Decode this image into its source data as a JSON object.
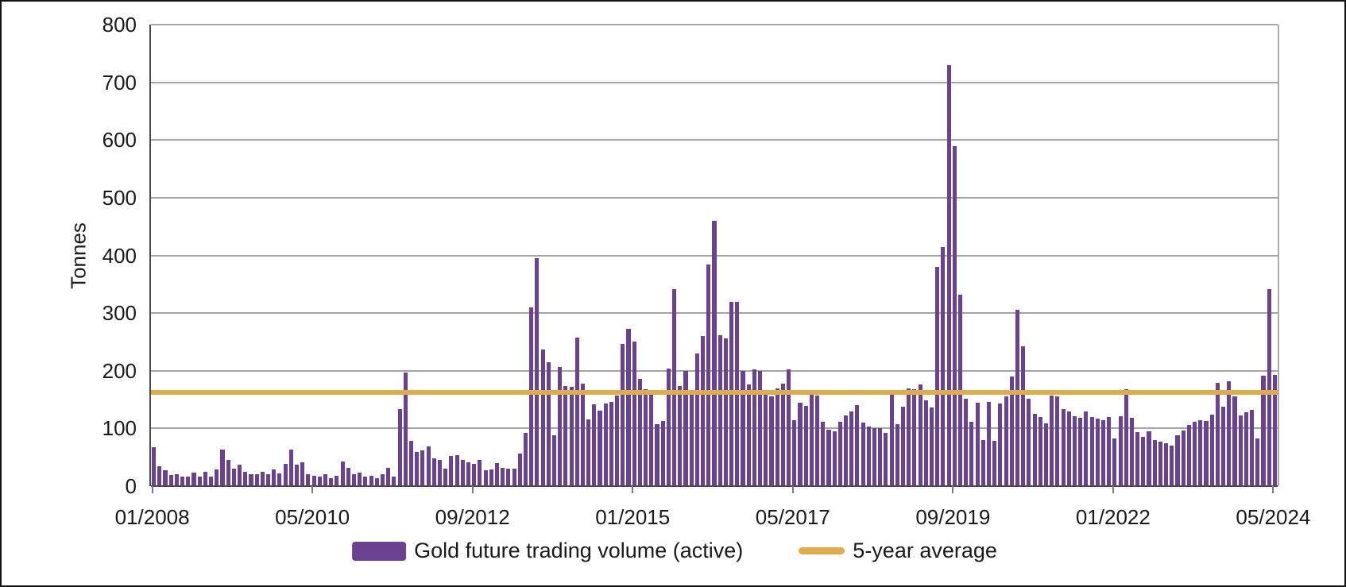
{
  "figure": {
    "background": "#ffffff",
    "border_color": "#141414",
    "gridline_color": "#a5a5a5",
    "axis_color": "#4a4a4a",
    "text_color": "#1a1a1a"
  },
  "chart_data": {
    "type": "bar",
    "title": "",
    "ylabel": "Tonnes",
    "xlabel": "",
    "ylim": [
      0,
      800
    ],
    "yticks": [
      0,
      100,
      200,
      300,
      400,
      500,
      600,
      700,
      800
    ],
    "grid": "horizontal",
    "legend_position": "bottom",
    "x_interval": "monthly",
    "x_start": "01/2008",
    "x_end": "05/2024",
    "xticks": [
      {
        "label": "01/2008",
        "month_index": 0
      },
      {
        "label": "05/2010",
        "month_index": 28
      },
      {
        "label": "09/2012",
        "month_index": 56
      },
      {
        "label": "01/2015",
        "month_index": 84
      },
      {
        "label": "05/2017",
        "month_index": 112
      },
      {
        "label": "09/2019",
        "month_index": 140
      },
      {
        "label": "01/2022",
        "month_index": 168
      },
      {
        "label": "05/2024",
        "month_index": 196
      }
    ],
    "series": [
      {
        "name": "Gold future trading volume (active)",
        "type": "bar",
        "color": "#6b4191",
        "values": [
          68,
          34,
          28,
          19,
          20,
          17,
          16,
          23,
          17,
          25,
          16,
          29,
          63,
          45,
          31,
          37,
          25,
          21,
          21,
          25,
          20,
          29,
          22,
          38,
          64,
          37,
          41,
          21,
          18,
          16,
          21,
          14,
          18,
          43,
          32,
          21,
          23,
          16,
          18,
          14,
          21,
          32,
          16,
          133,
          197,
          78,
          59,
          62,
          69,
          48,
          45,
          31,
          53,
          54,
          46,
          42,
          39,
          45,
          27,
          29,
          40,
          32,
          31,
          30,
          57,
          92,
          310,
          395,
          237,
          215,
          88,
          207,
          174,
          172,
          258,
          178,
          115,
          142,
          131,
          143,
          146,
          157,
          247,
          272,
          250,
          186,
          168,
          166,
          108,
          113,
          204,
          342,
          174,
          200,
          158,
          230,
          260,
          384,
          460,
          262,
          256,
          320,
          319,
          199,
          176,
          203,
          199,
          167,
          156,
          170,
          178,
          202,
          114,
          145,
          139,
          160,
          157,
          112,
          98,
          95,
          112,
          122,
          129,
          140,
          110,
          103,
          100,
          101,
          92,
          158,
          107,
          138,
          170,
          168,
          176,
          149,
          137,
          380,
          415,
          730,
          590,
          332,
          151,
          111,
          144,
          80,
          146,
          78,
          143,
          155,
          190,
          306,
          243,
          152,
          126,
          120,
          109,
          157,
          156,
          134,
          129,
          121,
          119,
          129,
          120,
          117,
          114,
          120,
          82,
          121,
          168,
          118,
          94,
          85,
          95,
          80,
          77,
          74,
          70,
          88,
          97,
          106,
          111,
          114,
          113,
          124,
          179,
          138,
          182,
          155,
          122,
          128,
          132,
          83,
          191,
          341,
          193
        ]
      },
      {
        "name": "5-year average",
        "type": "line",
        "color": "#dfab4b",
        "value": 163
      }
    ]
  }
}
